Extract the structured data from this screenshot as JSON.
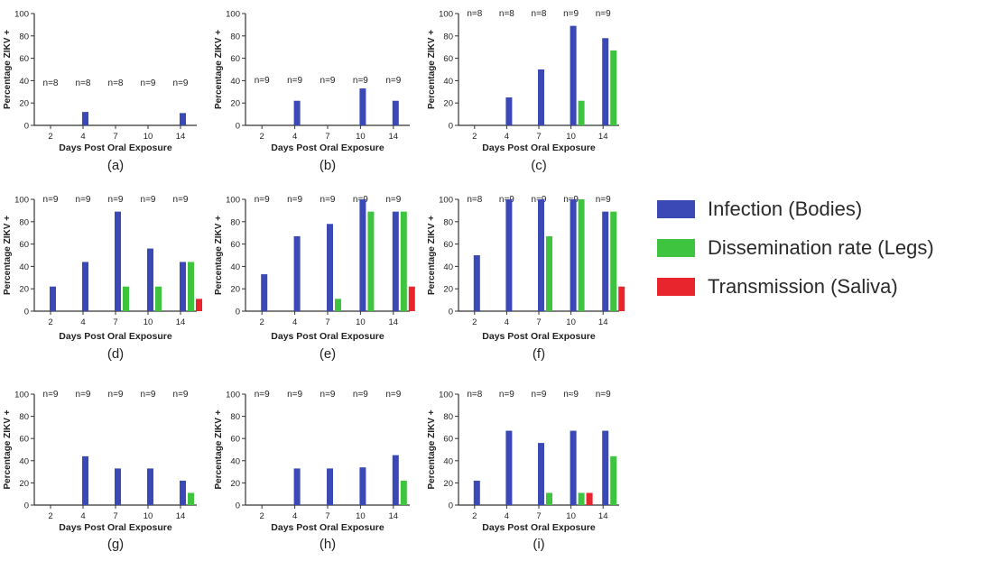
{
  "chart_data": [
    {
      "type": "bar",
      "panel_label": "(a)",
      "ylabel": "Percentage ZIKV +",
      "xlabel": "Days Post Oral Exposure",
      "ylim": [
        0,
        100
      ],
      "yticks": [
        0,
        20,
        40,
        60,
        80,
        100
      ],
      "categories": [
        "2",
        "4",
        "7",
        "10",
        "14"
      ],
      "n_labels": [
        "n=8",
        "n=8",
        "n=8",
        "n=9",
        "n=9"
      ],
      "series": [
        {
          "name": "Infection (Bodies)",
          "values": [
            0,
            12,
            0,
            0,
            11
          ]
        },
        {
          "name": "Dissemination rate (Legs)",
          "values": [
            0,
            0,
            0,
            0,
            0
          ]
        },
        {
          "name": "Transmission (Saliva)",
          "values": [
            0,
            0,
            0,
            0,
            0
          ]
        }
      ]
    },
    {
      "type": "bar",
      "panel_label": "(b)",
      "ylabel": "Percentage ZIKV +",
      "xlabel": "Days Post Oral Exposure",
      "ylim": [
        0,
        100
      ],
      "yticks": [
        0,
        20,
        40,
        60,
        80,
        100
      ],
      "categories": [
        "2",
        "4",
        "7",
        "10",
        "14"
      ],
      "n_labels": [
        "n=9",
        "n=9",
        "n=9",
        "n=9",
        "n=9"
      ],
      "series": [
        {
          "name": "Infection (Bodies)",
          "values": [
            0,
            22,
            0,
            33,
            22
          ]
        },
        {
          "name": "Dissemination rate (Legs)",
          "values": [
            0,
            0,
            0,
            0,
            0
          ]
        },
        {
          "name": "Transmission (Saliva)",
          "values": [
            0,
            0,
            0,
            0,
            0
          ]
        }
      ]
    },
    {
      "type": "bar",
      "panel_label": "(c)",
      "ylabel": "Percentage ZIKV +",
      "xlabel": "Days Post Oral Exposure",
      "ylim": [
        0,
        100
      ],
      "yticks": [
        0,
        20,
        40,
        60,
        80,
        100
      ],
      "categories": [
        "2",
        "4",
        "7",
        "10",
        "14"
      ],
      "n_labels": [
        "n=8",
        "n=8",
        "n=8",
        "n=9",
        "n=9"
      ],
      "series": [
        {
          "name": "Infection (Bodies)",
          "values": [
            0,
            25,
            50,
            89,
            78
          ]
        },
        {
          "name": "Dissemination rate (Legs)",
          "values": [
            0,
            0,
            0,
            22,
            67
          ]
        },
        {
          "name": "Transmission (Saliva)",
          "values": [
            0,
            0,
            0,
            0,
            0
          ]
        }
      ]
    },
    {
      "type": "bar",
      "panel_label": "(d)",
      "ylabel": "Percentage ZIKV +",
      "xlabel": "Days Post Oral Exposure",
      "ylim": [
        0,
        100
      ],
      "yticks": [
        0,
        20,
        40,
        60,
        80,
        100
      ],
      "categories": [
        "2",
        "4",
        "7",
        "10",
        "14"
      ],
      "n_labels": [
        "n=9",
        "n=9",
        "n=9",
        "n=9",
        "n=9"
      ],
      "series": [
        {
          "name": "Infection (Bodies)",
          "values": [
            22,
            44,
            89,
            56,
            44
          ]
        },
        {
          "name": "Dissemination rate (Legs)",
          "values": [
            0,
            0,
            22,
            22,
            44
          ]
        },
        {
          "name": "Transmission (Saliva)",
          "values": [
            0,
            0,
            0,
            0,
            11
          ]
        }
      ]
    },
    {
      "type": "bar",
      "panel_label": "(e)",
      "ylabel": "Percentage ZIKV +",
      "xlabel": "Days Post Oral Exposure",
      "ylim": [
        0,
        100
      ],
      "yticks": [
        0,
        20,
        40,
        60,
        80,
        100
      ],
      "categories": [
        "2",
        "4",
        "7",
        "10",
        "14"
      ],
      "n_labels": [
        "n=9",
        "n=9",
        "n=9",
        "n=9",
        "n=9"
      ],
      "series": [
        {
          "name": "Infection (Bodies)",
          "values": [
            33,
            67,
            78,
            100,
            89
          ]
        },
        {
          "name": "Dissemination rate (Legs)",
          "values": [
            0,
            0,
            11,
            89,
            89
          ]
        },
        {
          "name": "Transmission (Saliva)",
          "values": [
            0,
            0,
            0,
            0,
            22
          ]
        }
      ]
    },
    {
      "type": "bar",
      "panel_label": "(f)",
      "ylabel": "Percentage ZIKV +",
      "xlabel": "Days Post Oral Exposure",
      "ylim": [
        0,
        100
      ],
      "yticks": [
        0,
        20,
        40,
        60,
        80,
        100
      ],
      "categories": [
        "2",
        "4",
        "7",
        "10",
        "14"
      ],
      "n_labels": [
        "n=8",
        "n=9",
        "n=9",
        "n≈9",
        "n=9"
      ],
      "series": [
        {
          "name": "Infection (Bodies)",
          "values": [
            50,
            100,
            100,
            100,
            89
          ]
        },
        {
          "name": "Dissemination rate (Legs)",
          "values": [
            0,
            0,
            67,
            100,
            89
          ]
        },
        {
          "name": "Transmission (Saliva)",
          "values": [
            0,
            0,
            0,
            0,
            22
          ]
        }
      ]
    },
    {
      "type": "bar",
      "panel_label": "(g)",
      "ylabel": "Percentage ZIKV +",
      "xlabel": "Days Post Oral Exposure",
      "ylim": [
        0,
        100
      ],
      "yticks": [
        0,
        20,
        40,
        60,
        80,
        100
      ],
      "categories": [
        "2",
        "4",
        "7",
        "10",
        "14"
      ],
      "n_labels": [
        "n=9",
        "n=9",
        "n=9",
        "n=9",
        "n=9"
      ],
      "series": [
        {
          "name": "Infection (Bodies)",
          "values": [
            0,
            44,
            33,
            33,
            22
          ]
        },
        {
          "name": "Dissemination rate (Legs)",
          "values": [
            0,
            0,
            0,
            0,
            11
          ]
        },
        {
          "name": "Transmission (Saliva)",
          "values": [
            0,
            0,
            0,
            0,
            0
          ]
        }
      ]
    },
    {
      "type": "bar",
      "panel_label": "(h)",
      "ylabel": "Percentage ZIKV +",
      "xlabel": "Days Post Oral Exposure",
      "ylim": [
        0,
        100
      ],
      "yticks": [
        0,
        20,
        40,
        60,
        80,
        100
      ],
      "categories": [
        "2",
        "4",
        "7",
        "10",
        "14"
      ],
      "n_labels": [
        "n=9",
        "n=9",
        "n=9",
        "n=9",
        "n=9"
      ],
      "series": [
        {
          "name": "Infection (Bodies)",
          "values": [
            0,
            33,
            33,
            34,
            45
          ]
        },
        {
          "name": "Dissemination rate (Legs)",
          "values": [
            0,
            0,
            0,
            0,
            22
          ]
        },
        {
          "name": "Transmission (Saliva)",
          "values": [
            0,
            0,
            0,
            0,
            0
          ]
        }
      ]
    },
    {
      "type": "bar",
      "panel_label": "(i)",
      "ylabel": "Percentage ZIKV +",
      "xlabel": "Days Post Oral Exposure",
      "ylim": [
        0,
        100
      ],
      "yticks": [
        0,
        20,
        40,
        60,
        80,
        100
      ],
      "categories": [
        "2",
        "4",
        "7",
        "10",
        "14"
      ],
      "n_labels": [
        "n=8",
        "n=9",
        "n=9",
        "n≈9",
        "n=9"
      ],
      "series": [
        {
          "name": "Infection (Bodies)",
          "values": [
            22,
            67,
            56,
            67,
            67
          ]
        },
        {
          "name": "Dissemination rate (Legs)",
          "values": [
            0,
            0,
            11,
            11,
            44
          ]
        },
        {
          "name": "Transmission (Saliva)",
          "values": [
            0,
            0,
            0,
            11,
            0
          ]
        }
      ]
    }
  ],
  "legend": {
    "placement": "right",
    "items": [
      {
        "label": "Infection (Bodies)",
        "color": "#3a49b5"
      },
      {
        "label": "Dissemination rate (Legs)",
        "color": "#3ec43e"
      },
      {
        "label": "Transmission (Saliva)",
        "color": "#e8242c"
      }
    ]
  },
  "colors": {
    "infection": "#3a49b5",
    "dissemination": "#3ec43e",
    "transmission": "#e8242c",
    "axis": "#333333"
  }
}
